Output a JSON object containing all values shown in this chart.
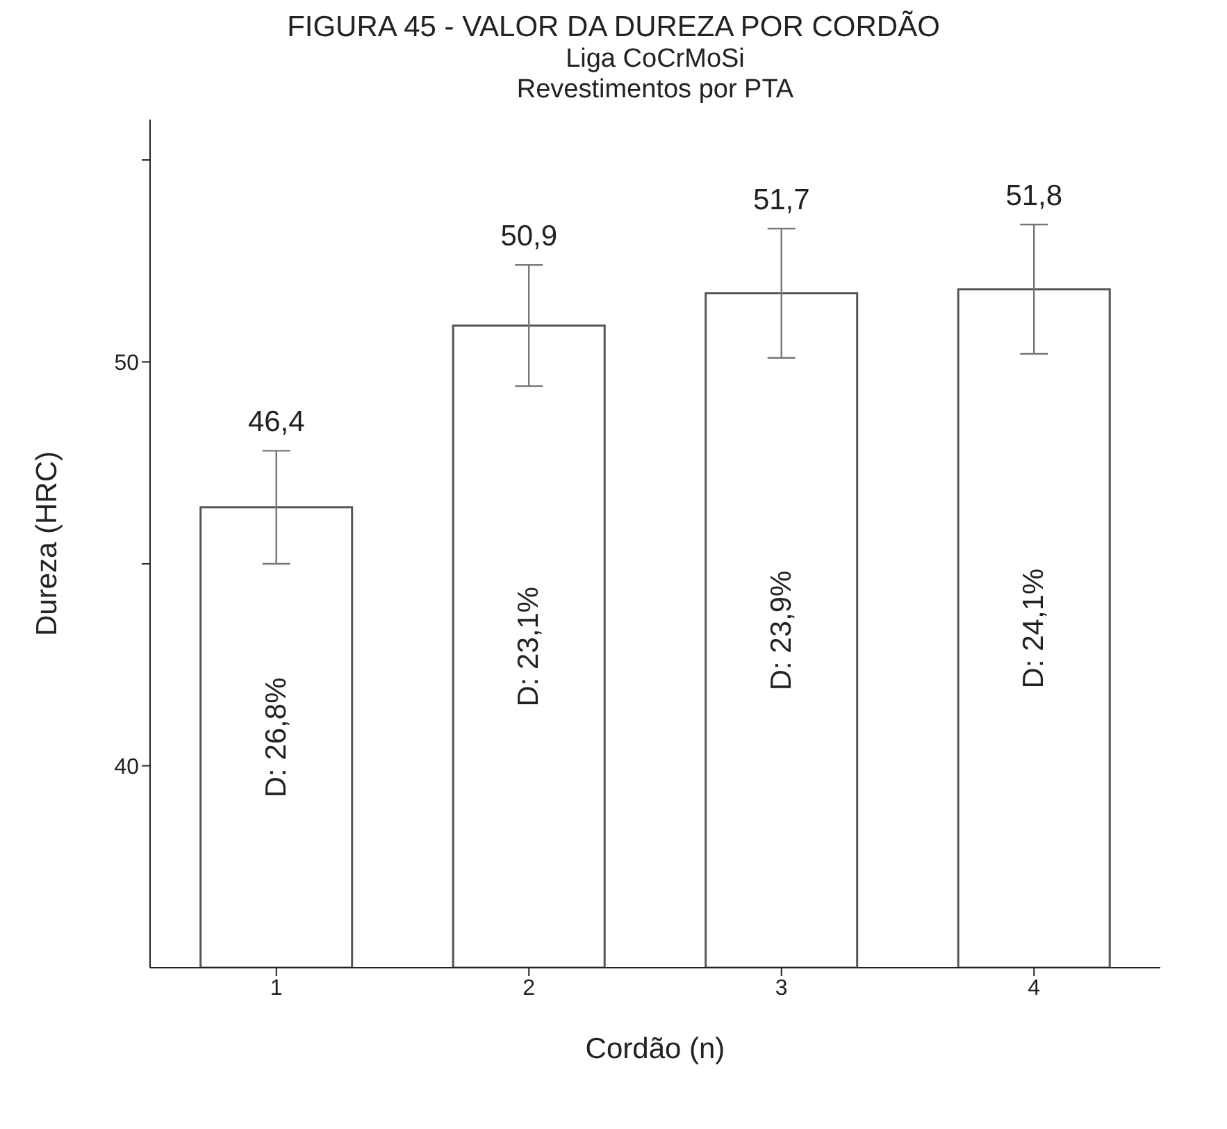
{
  "chart_data": {
    "type": "bar",
    "title": "FIGURA 45 - VALOR DA DUREZA POR CORDÃO",
    "subtitle": "Liga CoCrMoSi\nRevestimentos por PTA",
    "xlabel": "Cordão (n)",
    "ylabel": "Dureza (HRC)",
    "categories": [
      "1",
      "2",
      "3",
      "4"
    ],
    "values": [
      46.4,
      50.9,
      51.7,
      51.8
    ],
    "errors": [
      1.4,
      1.5,
      1.6,
      1.6
    ],
    "value_labels": [
      "46,4",
      "50,9",
      "51,7",
      "51,8"
    ],
    "color": "#ffffff",
    "ylim": [
      35,
      56
    ],
    "yticks": [
      40,
      {
        "value": 45,
        "label": null
      },
      50,
      {
        "value": 55,
        "label": null
      }
    ],
    "annotations": [
      "D: 26,8%",
      "D: 23,1%",
      "D: 23,9%",
      "D: 24,1%"
    ]
  }
}
